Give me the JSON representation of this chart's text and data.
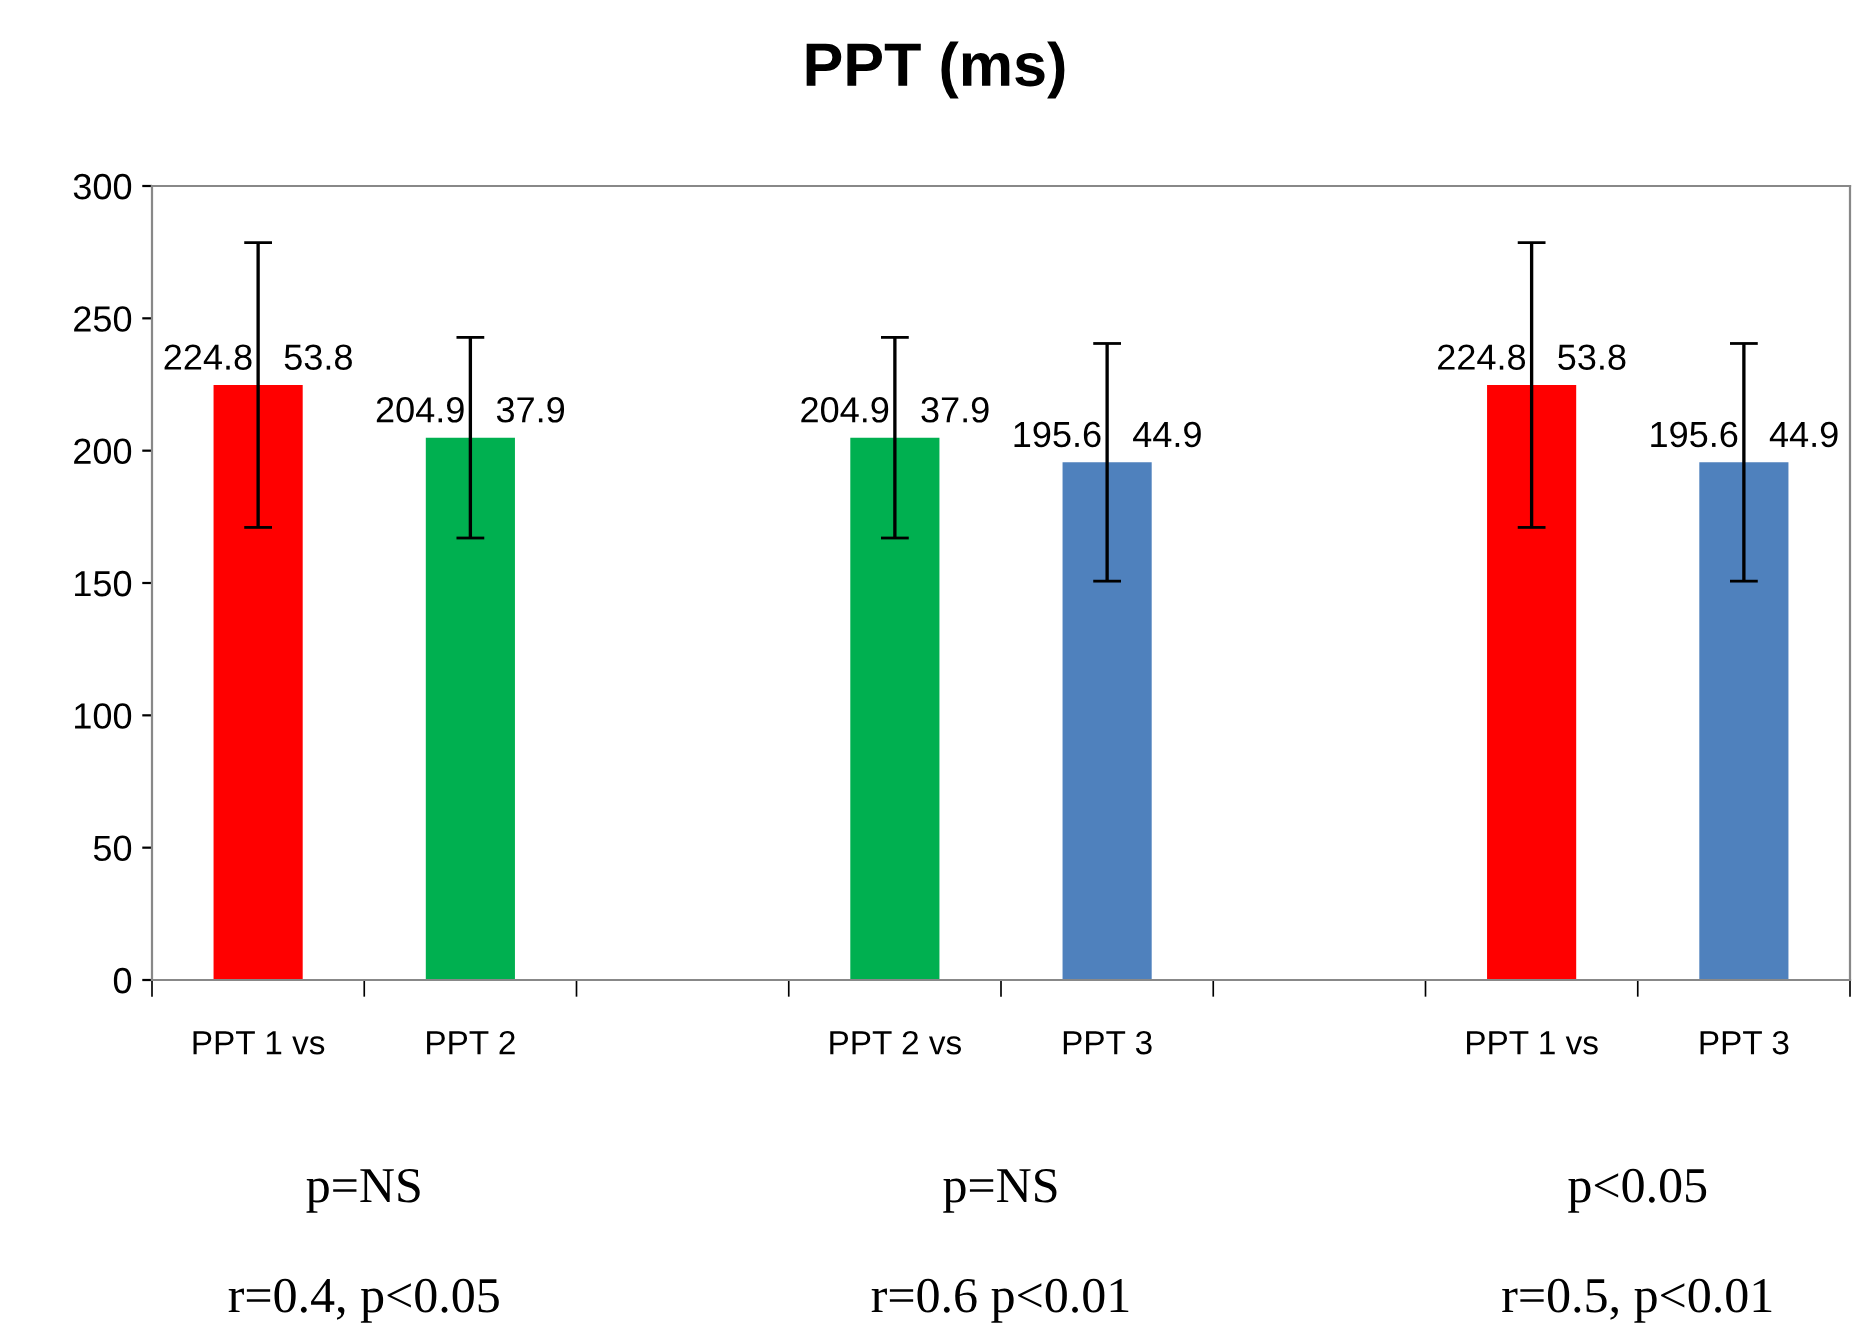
{
  "chart_data": {
    "type": "bar",
    "title": "PPT (ms)",
    "categories": [
      "PPT 1 vs",
      "PPT 2",
      null,
      "PPT 2 vs",
      "PPT 3",
      null,
      "PPT 1 vs",
      "PPT 3"
    ],
    "values": [
      224.8,
      204.9,
      null,
      204.9,
      195.6,
      null,
      224.8,
      195.6
    ],
    "errors": [
      53.8,
      37.9,
      null,
      37.9,
      44.9,
      null,
      53.8,
      44.9
    ],
    "colors": [
      "#ff0000",
      "#00b050",
      "#ffffff",
      "#00b050",
      "#4f81bd",
      "#ffffff",
      "#ff0000",
      "#4f81bd"
    ],
    "value_labels": [
      "224.8   53.8",
      "204.9   37.9",
      null,
      "204.9   37.9",
      "195.6   44.9",
      null,
      "224.8   53.8",
      "195.6   44.9"
    ],
    "ylim": [
      0,
      300
    ],
    "yticks": [
      0,
      50,
      100,
      150,
      200,
      250,
      300
    ],
    "grid": false,
    "legend": false,
    "annotations": [
      "p=NS",
      "p=NS",
      "p<0.05",
      "r=0.4, p<0.05",
      "r=0.6 p<0.01",
      "r=0.5, p<0.01"
    ]
  }
}
